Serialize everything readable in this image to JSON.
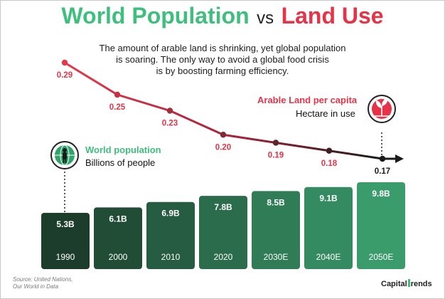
{
  "header": {
    "title_part1": "World Population",
    "title_vs": "vs",
    "title_part2": "Land Use",
    "subtitle_lines": [
      "The amount of arable land is shrinking, yet global population",
      "is soaring. The only way to avoid a global food crisis",
      "is by boosting farming efficiency."
    ]
  },
  "legend": {
    "population_title": "World population",
    "population_sub": "Billions of people",
    "land_title": "Arable Land per capita",
    "land_sub": "Hectare in use"
  },
  "footer": {
    "source_lines": [
      "Source: United Nations,",
      "Our World in Data"
    ],
    "brand_part1": "Capital",
    "brand_part2": "rends"
  },
  "colors": {
    "green_title": "#3fbf7e",
    "red_title": "#e63348",
    "bar_dark": "#1c3d2c",
    "bar_light": "#3a9b6b",
    "line_start": "#e6384a",
    "line_end": "#1a1a1a"
  },
  "chart_data": [
    {
      "type": "bar",
      "categories": [
        "1990",
        "2000",
        "2010",
        "2020",
        "2030E",
        "2040E",
        "2050E"
      ],
      "values": [
        5.3,
        6.1,
        6.9,
        7.8,
        8.5,
        9.1,
        9.8
      ],
      "value_labels": [
        "5.3B",
        "6.1B",
        "6.9B",
        "7.8B",
        "8.5B",
        "9.1B",
        "9.8B"
      ],
      "series": [
        {
          "name": "World population",
          "values": [
            5.3,
            6.1,
            6.9,
            7.8,
            8.5,
            9.1,
            9.8
          ]
        }
      ],
      "ylabel": "Billions of people",
      "ylim": [
        0,
        10
      ]
    },
    {
      "type": "line",
      "x": [
        "1990",
        "2000",
        "2010",
        "2020",
        "2030E",
        "2040E",
        "2050E"
      ],
      "values": [
        0.29,
        0.25,
        0.23,
        0.2,
        0.19,
        0.18,
        0.17
      ],
      "value_labels": [
        "0.29",
        "0.25",
        "0.23",
        "0.20",
        "0.19",
        "0.18",
        "0.17"
      ],
      "series": [
        {
          "name": "Arable Land per capita",
          "values": [
            0.29,
            0.25,
            0.23,
            0.2,
            0.19,
            0.18,
            0.17
          ]
        }
      ],
      "ylabel": "Hectare in use",
      "ylim": [
        0.17,
        0.29
      ]
    }
  ]
}
